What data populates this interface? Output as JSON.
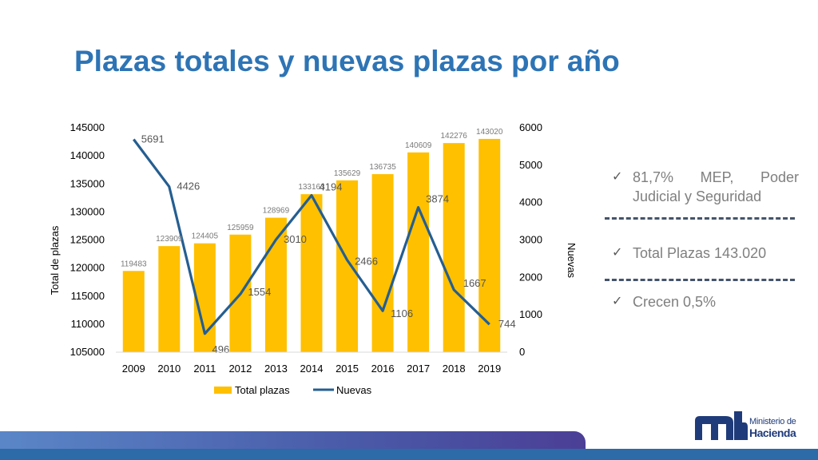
{
  "slide": {
    "title": "Plazas totales y nuevas plazas por año",
    "title_color": "#2e74b5"
  },
  "chart_data": {
    "type": "bar",
    "categories": [
      "2009",
      "2010",
      "2011",
      "2012",
      "2013",
      "2014",
      "2015",
      "2016",
      "2017",
      "2018",
      "2019"
    ],
    "series": [
      {
        "name": "Total plazas",
        "kind": "bar",
        "axis": "left",
        "color": "#ffc000",
        "values": [
          119483,
          123909,
          124405,
          125959,
          128969,
          133163,
          135629,
          136735,
          140609,
          142276,
          143020
        ]
      },
      {
        "name": "Nuevas",
        "kind": "line",
        "axis": "right",
        "color": "#255e91",
        "values": [
          5691,
          4426,
          496,
          1554,
          3010,
          4194,
          2466,
          1106,
          3874,
          1667,
          744
        ]
      }
    ],
    "ylabel": "Total de plazas",
    "y2label": "Nuevas",
    "ylim": [
      105000,
      145000
    ],
    "y2lim": [
      0,
      6000
    ],
    "yticks": [
      "105000",
      "110000",
      "115000",
      "120000",
      "125000",
      "130000",
      "135000",
      "140000",
      "145000"
    ],
    "y2ticks": [
      "0",
      "1000",
      "2000",
      "3000",
      "4000",
      "5000",
      "6000"
    ],
    "grid": false,
    "legend": "bottom"
  },
  "notes": [
    {
      "icon": "check-icon",
      "text": "81,7% MEP, Poder Judicial y Seguridad"
    },
    {
      "icon": "check-icon",
      "text": "Total Plazas 143.020"
    },
    {
      "icon": "check-icon",
      "text": "Crecen 0,5%"
    }
  ],
  "logo": {
    "line1": "Ministerio de",
    "line2": "Hacienda",
    "color": "#1f3b7a"
  }
}
